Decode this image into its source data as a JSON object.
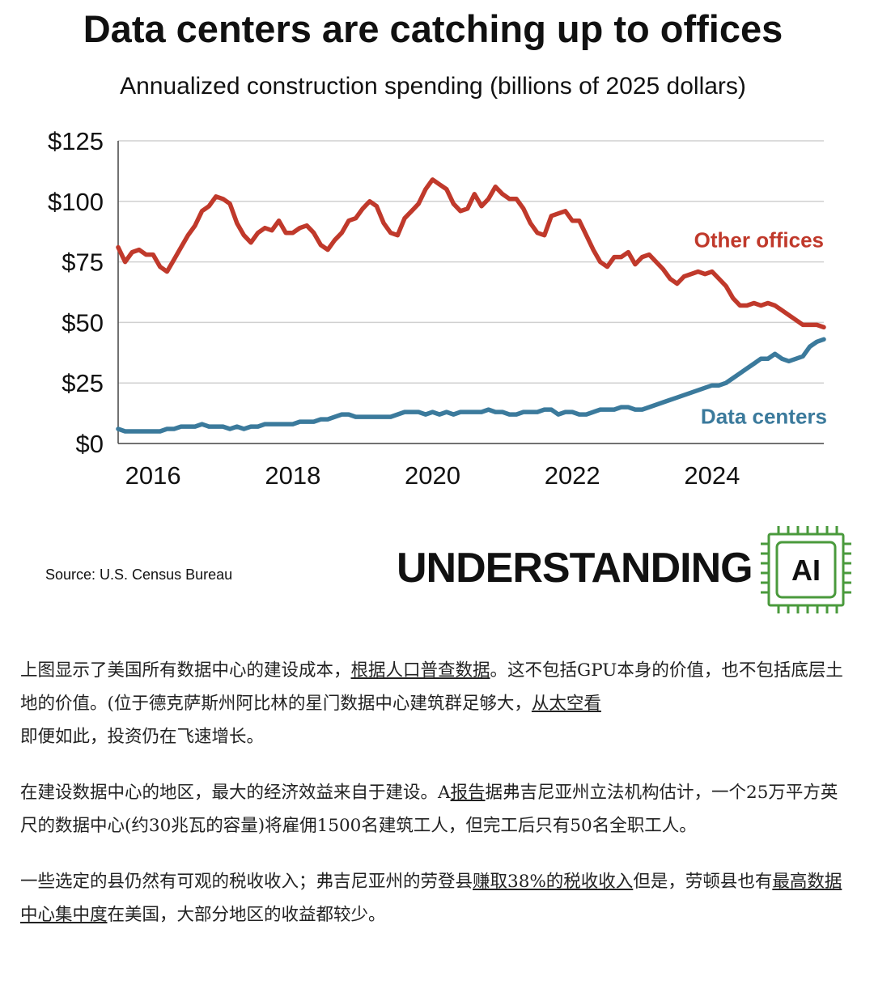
{
  "chart_data": {
    "type": "line",
    "title": "Data centers are catching up to offices",
    "subtitle": "Annualized construction spending (billions of 2025 dollars)",
    "ylim": [
      0,
      125
    ],
    "xlim": [
      2015.5,
      2025.6
    ],
    "y_ticks": [
      0,
      25,
      50,
      75,
      100,
      125
    ],
    "y_tick_labels": [
      "$0",
      "$25",
      "$50",
      "$75",
      "$100",
      "$125"
    ],
    "x_ticks": [
      2016,
      2018,
      2020,
      2022,
      2024
    ],
    "x_tick_labels": [
      "2016",
      "2018",
      "2020",
      "2022",
      "2024"
    ],
    "grid": "horizontal",
    "series": [
      {
        "name": "Other offices",
        "color": "#c0392b",
        "x": [
          2015.5,
          2015.6,
          2015.7,
          2015.8,
          2015.9,
          2016.0,
          2016.1,
          2016.2,
          2016.3,
          2016.4,
          2016.5,
          2016.6,
          2016.7,
          2016.8,
          2016.9,
          2017.0,
          2017.1,
          2017.2,
          2017.3,
          2017.4,
          2017.5,
          2017.6,
          2017.7,
          2017.8,
          2017.9,
          2018.0,
          2018.1,
          2018.2,
          2018.3,
          2018.4,
          2018.5,
          2018.6,
          2018.7,
          2018.8,
          2018.9,
          2019.0,
          2019.1,
          2019.2,
          2019.3,
          2019.4,
          2019.5,
          2019.6,
          2019.7,
          2019.8,
          2019.9,
          2020.0,
          2020.1,
          2020.2,
          2020.3,
          2020.4,
          2020.5,
          2020.6,
          2020.7,
          2020.8,
          2020.9,
          2021.0,
          2021.1,
          2021.2,
          2021.3,
          2021.4,
          2021.5,
          2021.6,
          2021.7,
          2021.8,
          2021.9,
          2022.0,
          2022.1,
          2022.2,
          2022.3,
          2022.4,
          2022.5,
          2022.6,
          2022.7,
          2022.8,
          2022.9,
          2023.0,
          2023.1,
          2023.2,
          2023.3,
          2023.4,
          2023.5,
          2023.6,
          2023.7,
          2023.8,
          2023.9,
          2024.0,
          2024.1,
          2024.2,
          2024.3,
          2024.4,
          2024.5,
          2024.6,
          2024.7,
          2024.8,
          2024.9,
          2025.0,
          2025.1,
          2025.2,
          2025.3,
          2025.4,
          2025.5,
          2025.6
        ],
        "values": [
          81,
          75,
          79,
          80,
          78,
          78,
          73,
          71,
          76,
          81,
          86,
          90,
          96,
          98,
          102,
          101,
          99,
          91,
          86,
          83,
          87,
          89,
          88,
          92,
          87,
          87,
          89,
          90,
          87,
          82,
          80,
          84,
          87,
          92,
          93,
          97,
          100,
          98,
          91,
          87,
          86,
          93,
          96,
          99,
          105,
          109,
          107,
          105,
          99,
          96,
          97,
          103,
          98,
          101,
          106,
          103,
          101,
          101,
          97,
          91,
          87,
          86,
          94,
          95,
          96,
          92,
          92,
          86,
          80,
          75,
          73,
          77,
          77,
          79,
          74,
          77,
          78,
          75,
          72,
          68,
          66,
          69,
          70,
          71,
          70,
          71,
          68,
          65,
          60,
          57,
          57,
          58,
          57,
          58,
          57,
          55,
          53,
          51,
          49,
          49,
          49,
          48
        ],
        "label": "Other offices"
      },
      {
        "name": "Data centers",
        "color": "#3b7a9c",
        "x": [
          2015.5,
          2015.6,
          2015.7,
          2015.8,
          2015.9,
          2016.0,
          2016.1,
          2016.2,
          2016.3,
          2016.4,
          2016.5,
          2016.6,
          2016.7,
          2016.8,
          2016.9,
          2017.0,
          2017.1,
          2017.2,
          2017.3,
          2017.4,
          2017.5,
          2017.6,
          2017.7,
          2017.8,
          2017.9,
          2018.0,
          2018.1,
          2018.2,
          2018.3,
          2018.4,
          2018.5,
          2018.6,
          2018.7,
          2018.8,
          2018.9,
          2019.0,
          2019.1,
          2019.2,
          2019.3,
          2019.4,
          2019.5,
          2019.6,
          2019.7,
          2019.8,
          2019.9,
          2020.0,
          2020.1,
          2020.2,
          2020.3,
          2020.4,
          2020.5,
          2020.6,
          2020.7,
          2020.8,
          2020.9,
          2021.0,
          2021.1,
          2021.2,
          2021.3,
          2021.4,
          2021.5,
          2021.6,
          2021.7,
          2021.8,
          2021.9,
          2022.0,
          2022.1,
          2022.2,
          2022.3,
          2022.4,
          2022.5,
          2022.6,
          2022.7,
          2022.8,
          2022.9,
          2023.0,
          2023.1,
          2023.2,
          2023.3,
          2023.4,
          2023.5,
          2023.6,
          2023.7,
          2023.8,
          2023.9,
          2024.0,
          2024.1,
          2024.2,
          2024.3,
          2024.4,
          2024.5,
          2024.6,
          2024.7,
          2024.8,
          2024.9,
          2025.0,
          2025.1,
          2025.2,
          2025.3,
          2025.4,
          2025.5,
          2025.6
        ],
        "values": [
          6,
          5,
          5,
          5,
          5,
          5,
          5,
          6,
          6,
          7,
          7,
          7,
          8,
          7,
          7,
          7,
          6,
          7,
          6,
          7,
          7,
          8,
          8,
          8,
          8,
          8,
          9,
          9,
          9,
          10,
          10,
          11,
          12,
          12,
          11,
          11,
          11,
          11,
          11,
          11,
          12,
          13,
          13,
          13,
          12,
          13,
          12,
          13,
          12,
          13,
          13,
          13,
          13,
          14,
          13,
          13,
          12,
          12,
          13,
          13,
          13,
          14,
          14,
          12,
          13,
          13,
          12,
          12,
          13,
          14,
          14,
          14,
          15,
          15,
          14,
          14,
          15,
          16,
          17,
          18,
          19,
          20,
          21,
          22,
          23,
          24,
          24,
          25,
          27,
          29,
          31,
          33,
          35,
          35,
          37,
          35,
          34,
          35,
          36,
          40,
          42,
          43
        ],
        "label": "Data centers"
      }
    ],
    "source": "Source: U.S. Census Bureau"
  },
  "logo": {
    "text": "UNDERSTANDING",
    "chip_text": "AI",
    "color": "#4a9a3c"
  },
  "article": {
    "p1_pre": "上图显示了美国所有数据中心的建设成本，",
    "p1_link1": "根据人口普查数据",
    "p1_mid": "。这不包括GPU本身的价值，也不包括底层土地的价值。(位于德克萨斯州阿比林的星门数据中心建筑群足够大，",
    "p1_link2": "从太空看",
    "p1_post": "即便如此，投资仍在飞速增长。",
    "p2_pre": "在建设数据中心的地区，最大的经济效益来自于建设。A",
    "p2_link1": "报告",
    "p2_post": "据弗吉尼亚州立法机构估计，一个25万平方英尺的数据中心(约30兆瓦的容量)将雇佣1500名建筑工人，但完工后只有50名全职工人。",
    "p3_pre": "一些选定的县仍然有可观的税收收入；弗吉尼亚州的劳登县",
    "p3_link1": "赚取38%的税收收入",
    "p3_mid": "但是，劳顿县也有",
    "p3_link2": "最高数据中心集中度",
    "p3_post": "在美国，大部分地区的收益都较少。"
  }
}
